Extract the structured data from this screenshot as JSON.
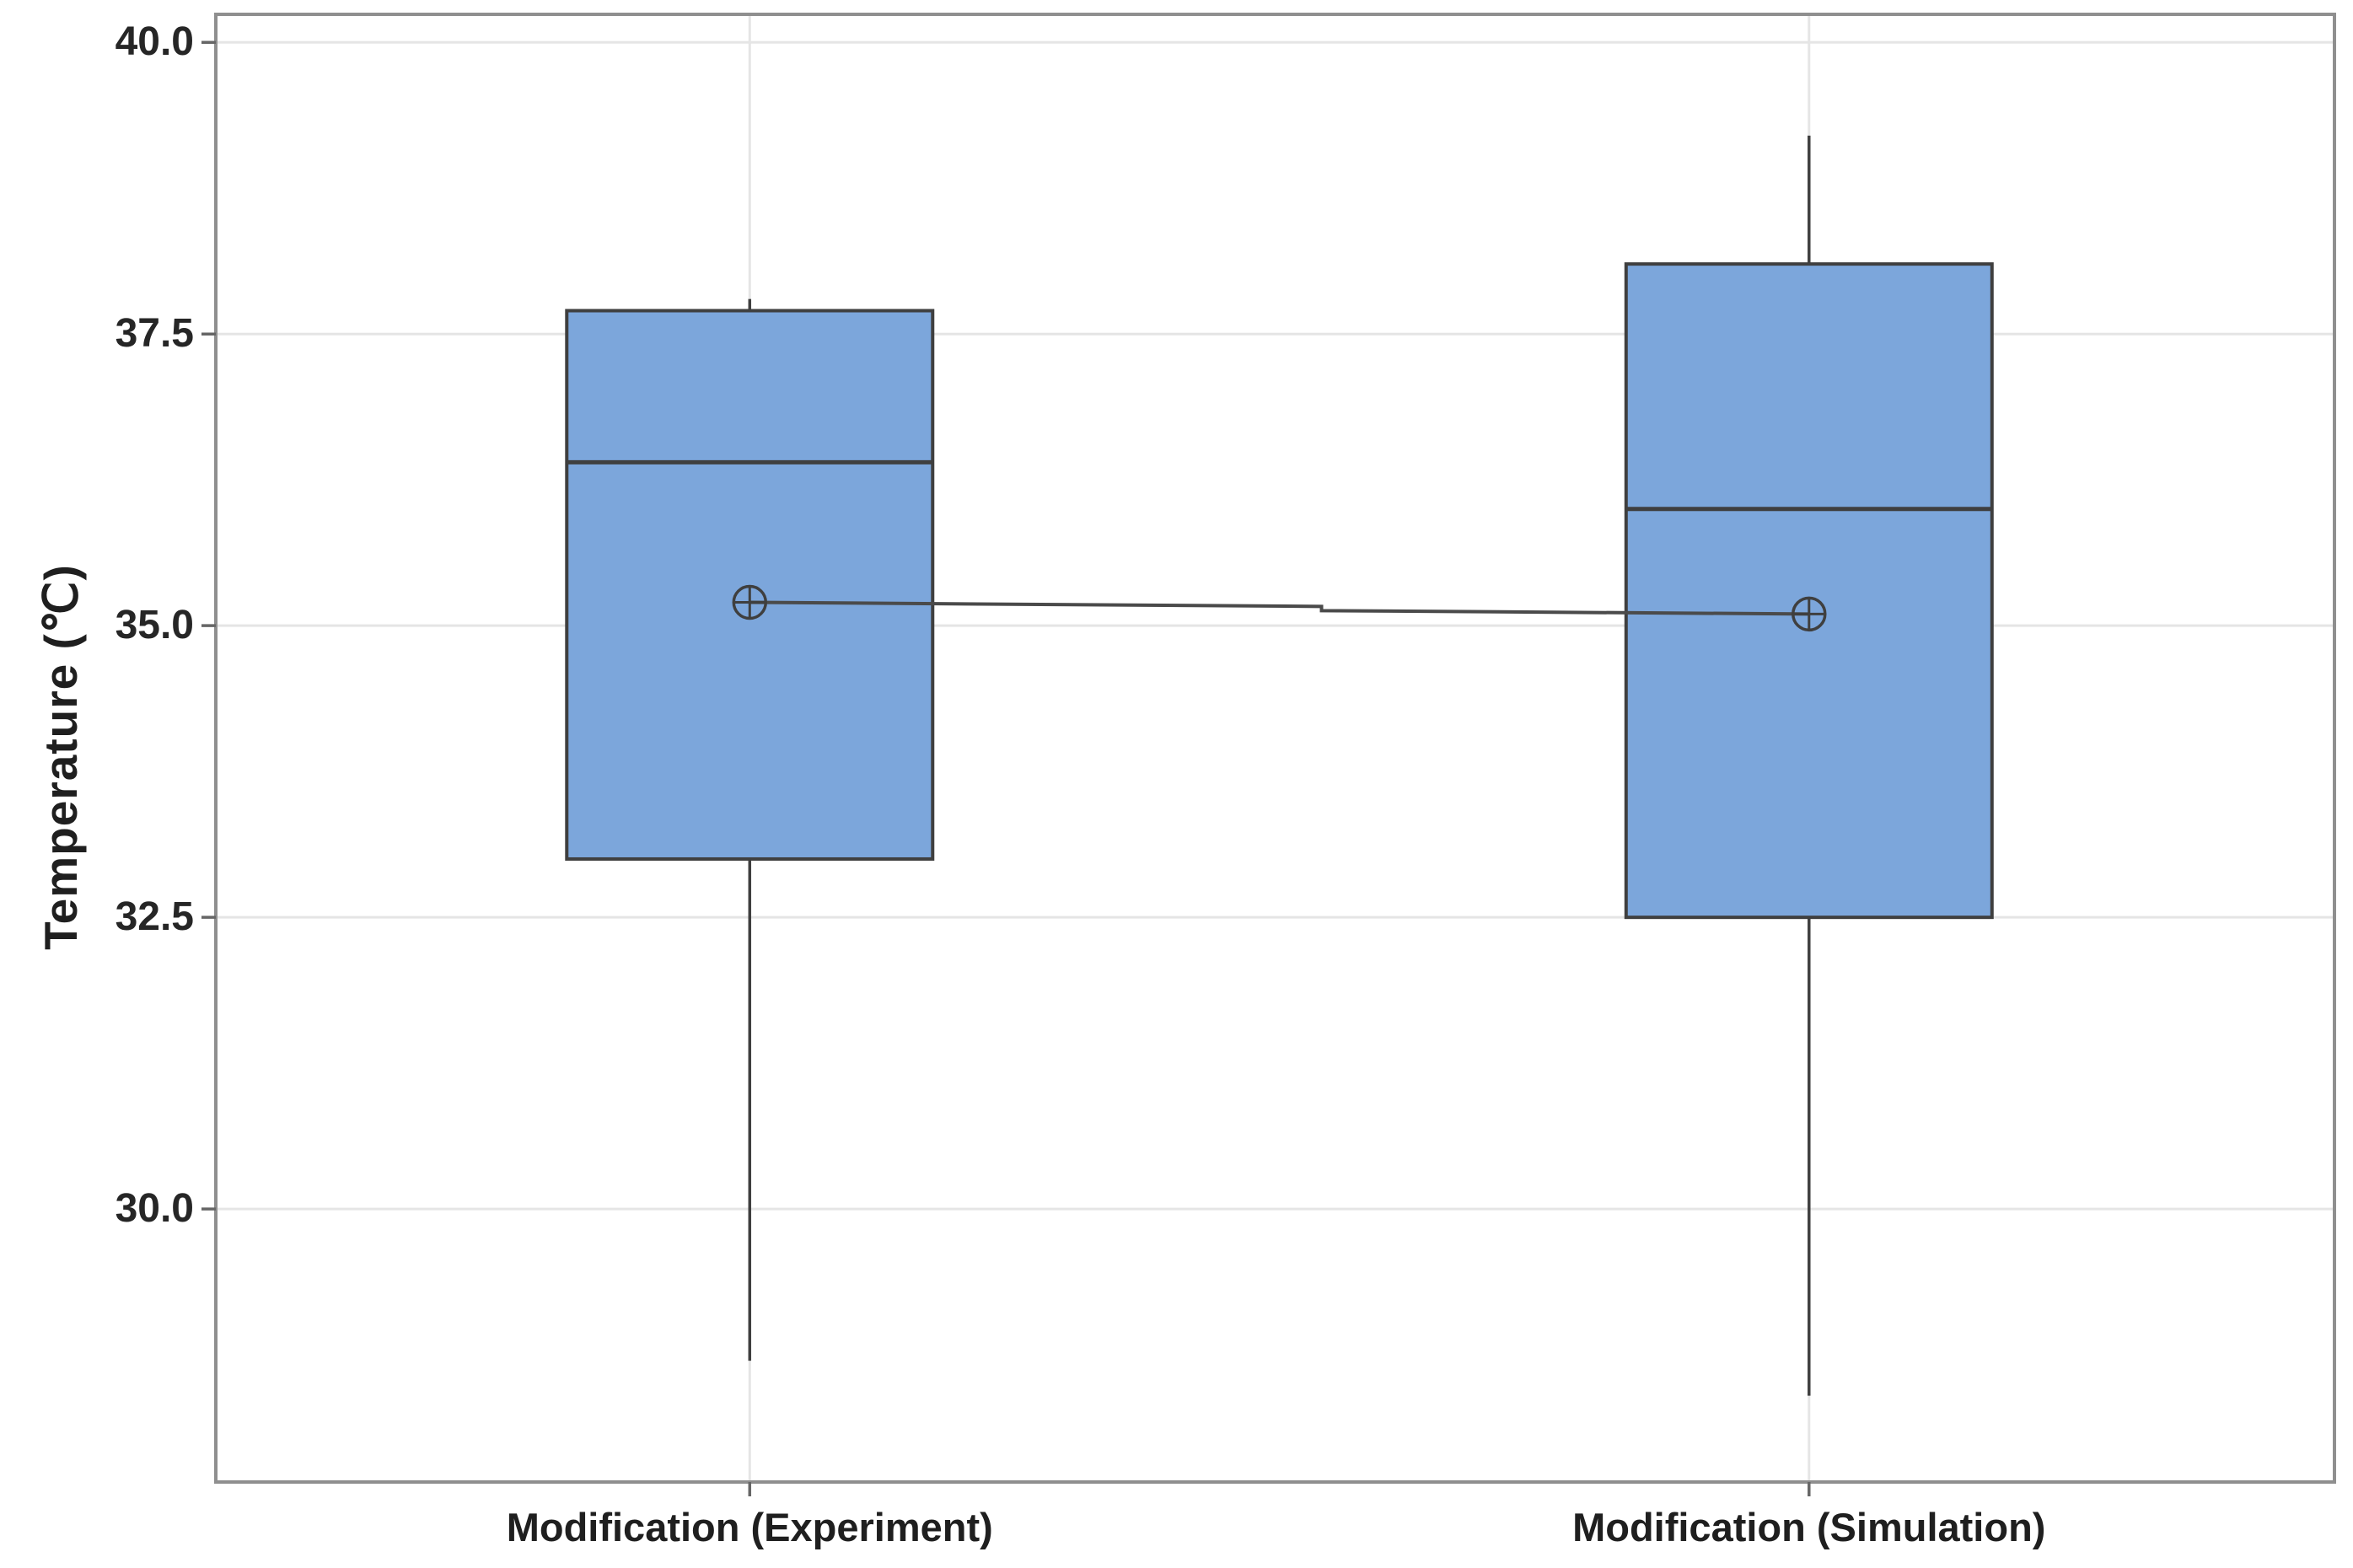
{
  "chart_data": {
    "type": "box",
    "title": "",
    "xlabel": "",
    "ylabel": "Temperature (℃)",
    "categories": [
      "Modification (Experiment)",
      "Modification (Simulation)"
    ],
    "y_ticks": [
      40.0,
      37.5,
      35.0,
      32.5,
      30.0
    ],
    "y_tick_labels": [
      "40.0",
      "37.5",
      "35.0",
      "32.5",
      "30.0"
    ],
    "ylim": [
      27.66,
      40.24
    ],
    "grid": {
      "horizontal_at_ticks": true,
      "vertical_at_categories": true
    },
    "legend": "none",
    "boxes": [
      {
        "category": "Modification (Experiment)",
        "whisker_low": 28.7,
        "q1": 33.0,
        "median": 36.4,
        "q3": 37.7,
        "whisker_high": 37.8,
        "mean": 35.2
      },
      {
        "category": "Modification (Simulation)",
        "whisker_low": 28.4,
        "q1": 32.5,
        "median": 36.0,
        "q3": 38.1,
        "whisker_high": 39.2,
        "mean": 35.1
      }
    ],
    "mean_marker": "circled-plus",
    "mean_connector_line": true,
    "colors": {
      "box_fill": "#7CA6DB",
      "box_border": "#3F3F3F",
      "median_line": "#3F3F3F",
      "whisker": "#3F3F3F",
      "mean_marker": "#3F3F3F",
      "mean_connector": "#4A4A4A",
      "gridline": "#E5E5E5",
      "panel_border": "#8F8F8F",
      "tick_mark": "#666666",
      "text": "#1F1F1F",
      "background": "#FFFFFF"
    }
  }
}
